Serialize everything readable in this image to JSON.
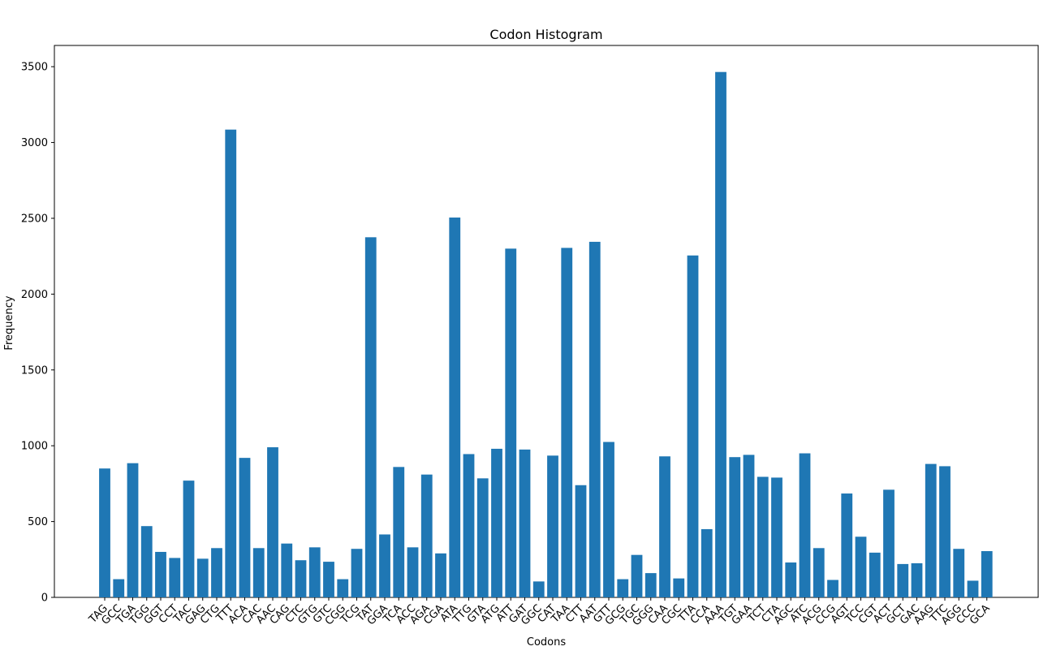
{
  "chart_data": {
    "type": "bar",
    "title": "Codon Histogram",
    "xlabel": "Codons",
    "ylabel": "Frequency",
    "ylim": [
      0,
      3640
    ],
    "yticks": [
      0,
      500,
      1000,
      1500,
      2000,
      2500,
      3000,
      3500
    ],
    "grid": false,
    "bar_color": "#1f77b4",
    "categories": [
      "TAG",
      "GCC",
      "TGA",
      "TGG",
      "GGT",
      "CCT",
      "TAC",
      "GAG",
      "CTG",
      "TTT",
      "ACA",
      "CAC",
      "AAC",
      "CAG",
      "CTC",
      "GTG",
      "GTC",
      "CGG",
      "TCG",
      "TAT",
      "GGA",
      "TCA",
      "ACC",
      "AGA",
      "CGA",
      "ATA",
      "TTG",
      "GTA",
      "ATG",
      "ATT",
      "GAT",
      "GGC",
      "CAT",
      "TAA",
      "CTT",
      "AAT",
      "GTT",
      "GCG",
      "TGC",
      "GGG",
      "CAA",
      "CGC",
      "TTA",
      "CCA",
      "AAA",
      "TGT",
      "GAA",
      "TCT",
      "CTA",
      "AGC",
      "ATC",
      "ACG",
      "CCG",
      "AGT",
      "TCC",
      "CGT",
      "ACT",
      "GCT",
      "GAC",
      "AAG",
      "TTC",
      "AGG",
      "CCC",
      "GCA"
    ],
    "values": [
      850,
      120,
      885,
      470,
      300,
      260,
      770,
      255,
      325,
      3085,
      920,
      325,
      990,
      355,
      245,
      330,
      235,
      120,
      320,
      2375,
      415,
      860,
      330,
      810,
      290,
      2505,
      945,
      785,
      980,
      2300,
      975,
      105,
      935,
      2305,
      740,
      2345,
      1025,
      120,
      280,
      160,
      930,
      125,
      2255,
      450,
      3465,
      925,
      940,
      795,
      790,
      230,
      950,
      325,
      115,
      685,
      400,
      295,
      710,
      220,
      225,
      880,
      865,
      320,
      110,
      305
    ]
  }
}
